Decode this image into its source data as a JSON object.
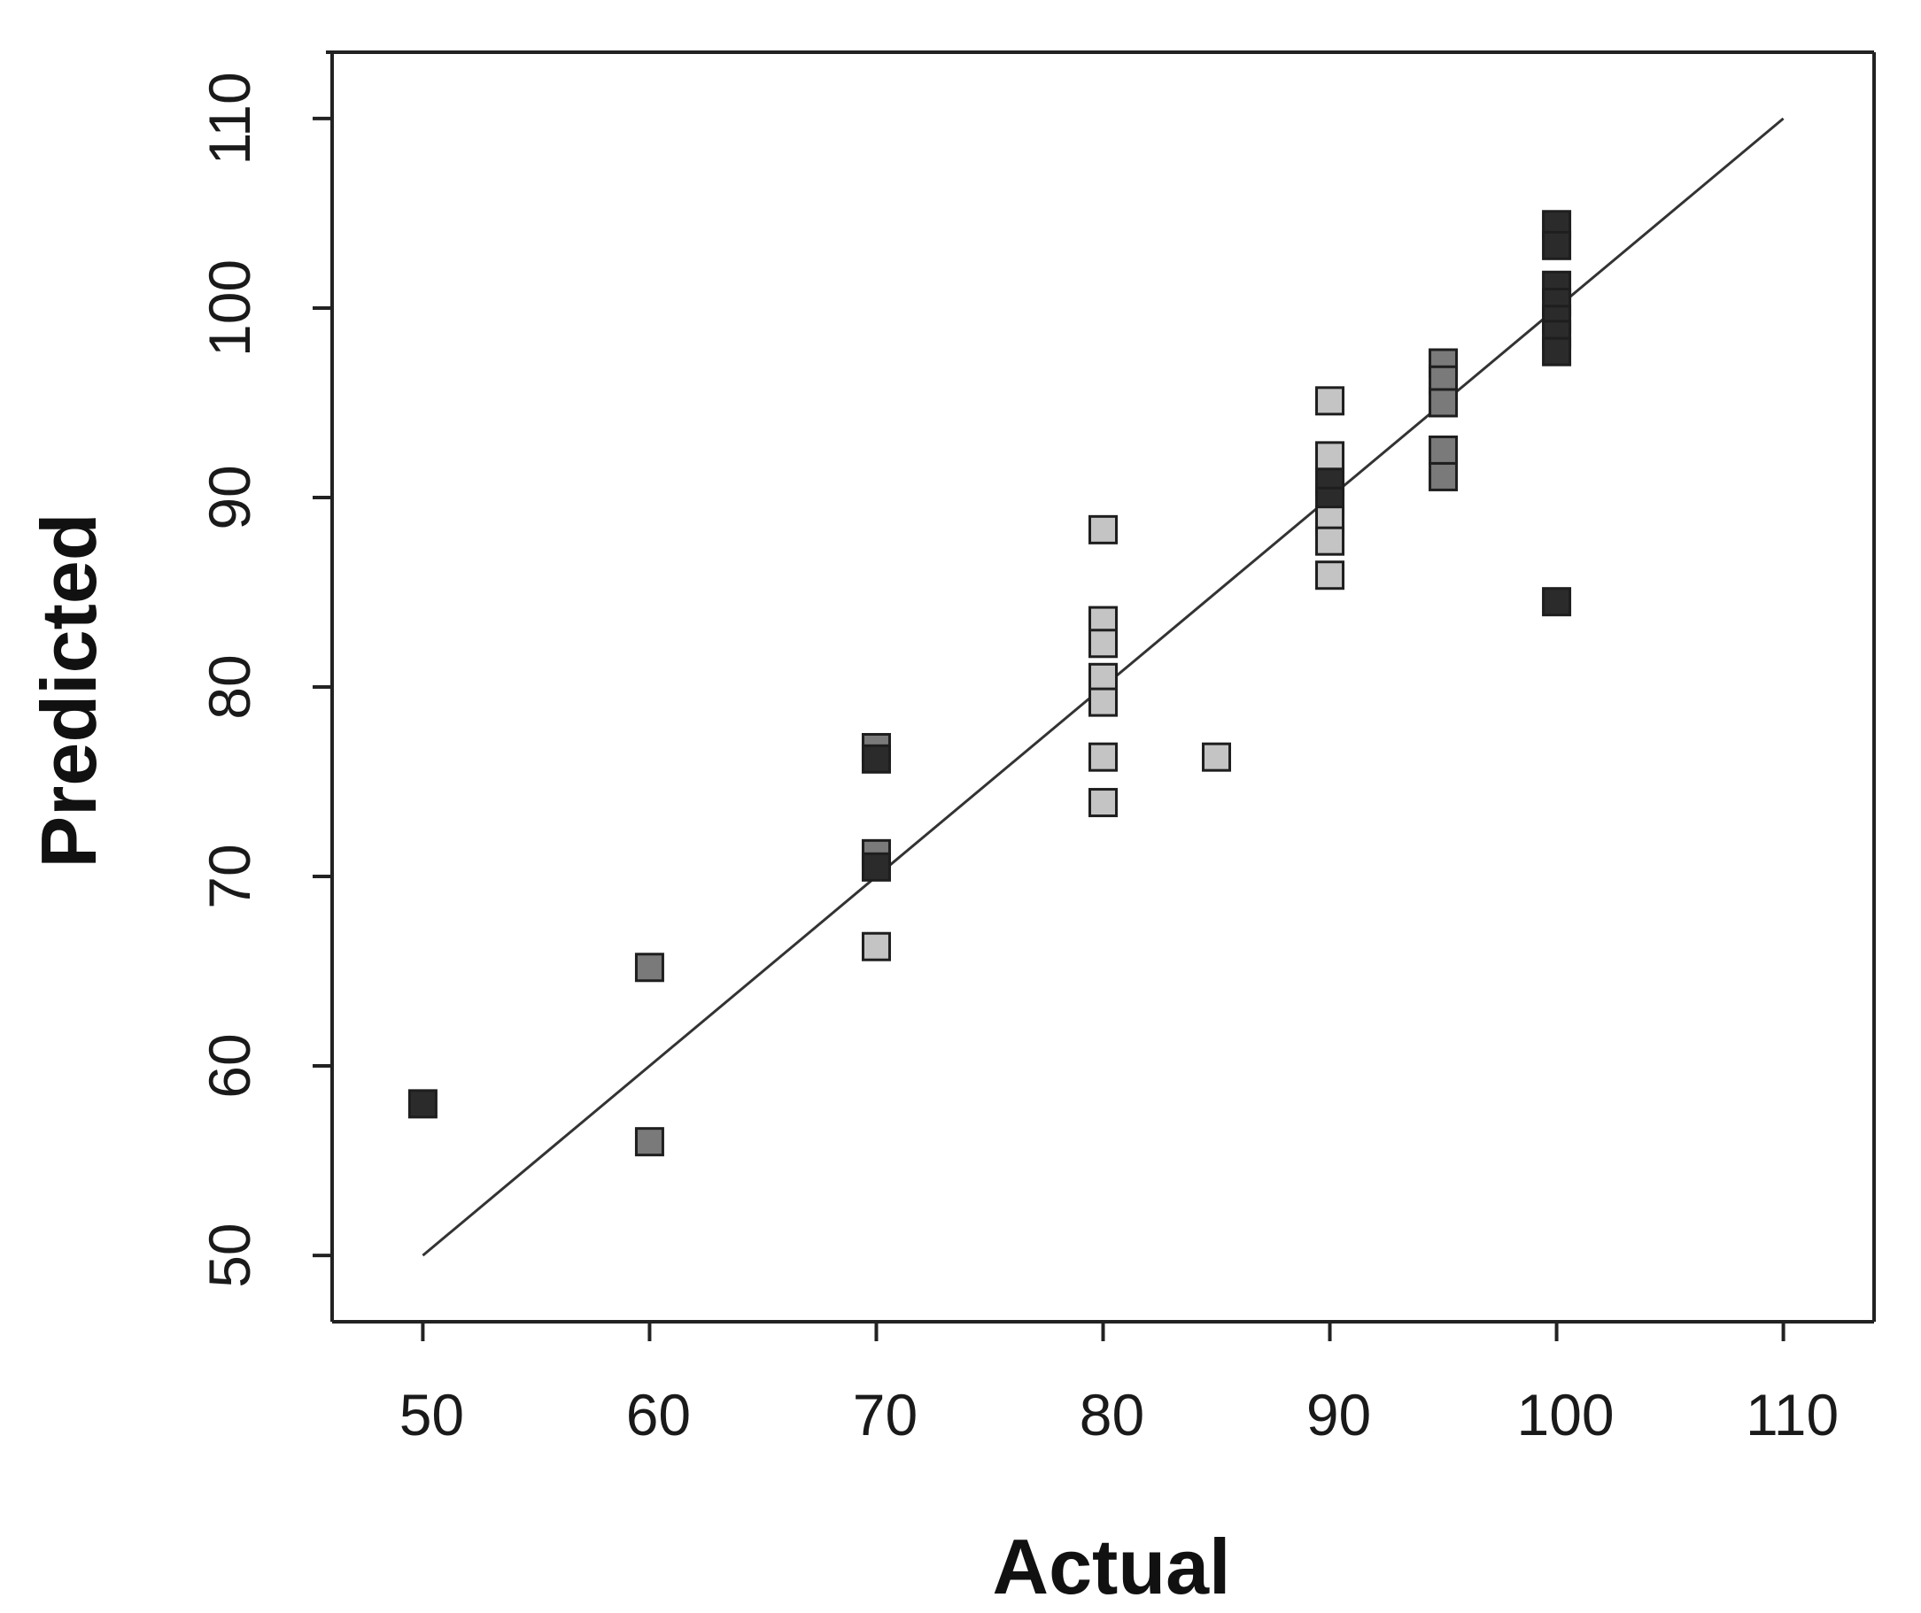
{
  "chart_data": {
    "type": "scatter",
    "title": "",
    "xlabel": "Actual",
    "ylabel": "Predicted",
    "xlim": [
      46,
      114
    ],
    "ylim": [
      46.5,
      113.5
    ],
    "xticks": [
      50,
      60,
      70,
      80,
      90,
      100,
      110
    ],
    "yticks": [
      50,
      60,
      70,
      80,
      90,
      100,
      110
    ],
    "grid": false,
    "reference_line": {
      "from": [
        50,
        50
      ],
      "to": [
        110,
        110
      ],
      "color": "#333333"
    },
    "shade_colors": {
      "dark": "#2b2b2b",
      "mid": "#7a7a7a",
      "light": "#c4c4c4"
    },
    "points": [
      {
        "x": 50,
        "y": 58,
        "shade": "dark"
      },
      {
        "x": 60,
        "y": 65.2,
        "shade": "mid"
      },
      {
        "x": 60,
        "y": 56,
        "shade": "mid"
      },
      {
        "x": 70,
        "y": 76.8,
        "shade": "mid"
      },
      {
        "x": 70,
        "y": 76.2,
        "shade": "dark"
      },
      {
        "x": 70,
        "y": 71.2,
        "shade": "mid"
      },
      {
        "x": 70,
        "y": 70.5,
        "shade": "dark"
      },
      {
        "x": 70,
        "y": 66.3,
        "shade": "light"
      },
      {
        "x": 80,
        "y": 88.3,
        "shade": "light"
      },
      {
        "x": 80,
        "y": 83.5,
        "shade": "light"
      },
      {
        "x": 80,
        "y": 82.3,
        "shade": "light"
      },
      {
        "x": 80,
        "y": 80.5,
        "shade": "light"
      },
      {
        "x": 80,
        "y": 79.2,
        "shade": "light"
      },
      {
        "x": 80,
        "y": 76.3,
        "shade": "light"
      },
      {
        "x": 80,
        "y": 73.9,
        "shade": "light"
      },
      {
        "x": 85,
        "y": 76.3,
        "shade": "light"
      },
      {
        "x": 90,
        "y": 95.1,
        "shade": "light"
      },
      {
        "x": 90,
        "y": 92.2,
        "shade": "light"
      },
      {
        "x": 90,
        "y": 90.8,
        "shade": "dark"
      },
      {
        "x": 90,
        "y": 89.8,
        "shade": "dark"
      },
      {
        "x": 90,
        "y": 88.8,
        "shade": "light"
      },
      {
        "x": 90,
        "y": 87.7,
        "shade": "light"
      },
      {
        "x": 90,
        "y": 85.9,
        "shade": "light"
      },
      {
        "x": 95,
        "y": 97.1,
        "shade": "mid"
      },
      {
        "x": 95,
        "y": 96.2,
        "shade": "mid"
      },
      {
        "x": 95,
        "y": 95.0,
        "shade": "mid"
      },
      {
        "x": 95,
        "y": 92.5,
        "shade": "mid"
      },
      {
        "x": 95,
        "y": 91.1,
        "shade": "mid"
      },
      {
        "x": 100,
        "y": 104.4,
        "shade": "dark"
      },
      {
        "x": 100,
        "y": 103.3,
        "shade": "dark"
      },
      {
        "x": 100,
        "y": 101.2,
        "shade": "dark"
      },
      {
        "x": 100,
        "y": 100.3,
        "shade": "dark"
      },
      {
        "x": 100,
        "y": 99.4,
        "shade": "dark"
      },
      {
        "x": 100,
        "y": 98.6,
        "shade": "dark"
      },
      {
        "x": 100,
        "y": 97.7,
        "shade": "dark"
      },
      {
        "x": 100,
        "y": 84.5,
        "shade": "dark"
      }
    ]
  }
}
